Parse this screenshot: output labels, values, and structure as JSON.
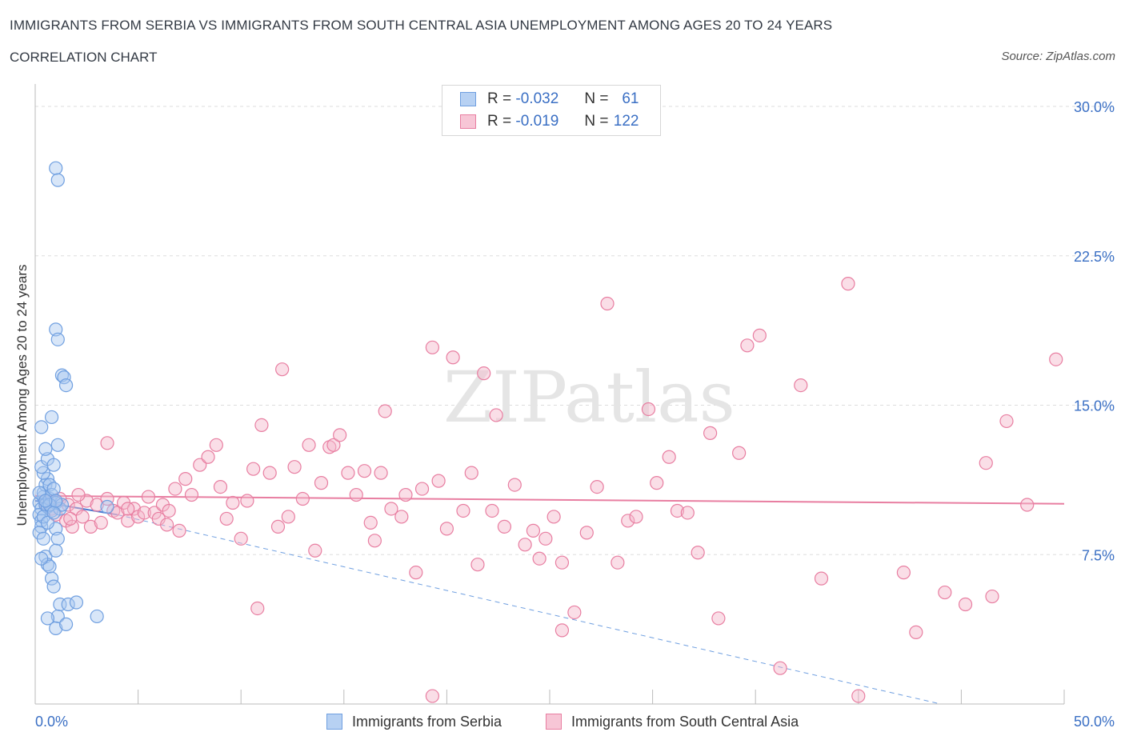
{
  "chart_data": {
    "type": "scatter",
    "title": "IMMIGRANTS FROM SERBIA VS IMMIGRANTS FROM SOUTH CENTRAL ASIA UNEMPLOYMENT AMONG AGES 20 TO 24 YEARS",
    "subtitle": "CORRELATION CHART",
    "source": "Source: ZipAtlas.com",
    "watermark": "ZIPatlas",
    "ylabel": "Unemployment Among Ages 20 to 24 years",
    "x_range": [
      0,
      50
    ],
    "y_range": [
      0,
      30
    ],
    "x_tick_labels": [
      "0.0%",
      "50.0%"
    ],
    "y_tick_labels": [
      "7.5%",
      "15.0%",
      "22.5%",
      "30.0%"
    ],
    "y_ticks": [
      7.5,
      15.0,
      22.5,
      30.0
    ],
    "legend": [
      {
        "r_label": "R =",
        "r_value": "-0.032",
        "n_label": "N =",
        "n_value": "61"
      },
      {
        "r_label": "R =",
        "r_value": "-0.019",
        "n_label": "N =",
        "n_value": "122"
      }
    ],
    "series": [
      {
        "name": "Immigrants from Serbia",
        "color": "#6f9fe0",
        "fill": "#a9c8f0",
        "trend": {
          "x": [
            0,
            4
          ],
          "y": [
            10.2,
            9.5
          ],
          "style": "solid"
        },
        "trend_ext": {
          "x": [
            4,
            44
          ],
          "y": [
            9.5,
            0
          ],
          "style": "dashed"
        },
        "points": [
          [
            0.2,
            10.1
          ],
          [
            0.3,
            9.8
          ],
          [
            0.2,
            9.5
          ],
          [
            0.4,
            10.4
          ],
          [
            0.3,
            9.2
          ],
          [
            0.5,
            10.0
          ],
          [
            0.4,
            10.6
          ],
          [
            0.6,
            9.9
          ],
          [
            0.7,
            10.3
          ],
          [
            0.8,
            9.7
          ],
          [
            0.3,
            8.9
          ],
          [
            0.2,
            8.6
          ],
          [
            0.4,
            8.3
          ],
          [
            0.5,
            11.0
          ],
          [
            0.6,
            11.3
          ],
          [
            0.4,
            11.6
          ],
          [
            0.7,
            11.0
          ],
          [
            0.8,
            10.5
          ],
          [
            0.9,
            10.8
          ],
          [
            0.3,
            11.9
          ],
          [
            0.6,
            12.3
          ],
          [
            0.5,
            12.8
          ],
          [
            0.9,
            12.0
          ],
          [
            1.1,
            13.0
          ],
          [
            0.3,
            13.9
          ],
          [
            0.8,
            14.4
          ],
          [
            1.0,
            10.1
          ],
          [
            1.2,
            9.8
          ],
          [
            1.3,
            10.0
          ],
          [
            1.0,
            8.8
          ],
          [
            1.1,
            8.3
          ],
          [
            0.5,
            7.4
          ],
          [
            0.6,
            7.0
          ],
          [
            0.7,
            6.9
          ],
          [
            0.8,
            6.3
          ],
          [
            0.9,
            5.9
          ],
          [
            1.0,
            7.7
          ],
          [
            1.2,
            5.0
          ],
          [
            1.1,
            4.4
          ],
          [
            0.6,
            4.3
          ],
          [
            1.0,
            3.8
          ],
          [
            1.5,
            4.0
          ],
          [
            1.6,
            5.0
          ],
          [
            2.0,
            5.1
          ],
          [
            3.0,
            4.4
          ],
          [
            0.3,
            7.3
          ],
          [
            1.0,
            18.8
          ],
          [
            1.1,
            18.3
          ],
          [
            1.3,
            16.5
          ],
          [
            1.4,
            16.4
          ],
          [
            1.5,
            16.0
          ],
          [
            1.0,
            26.9
          ],
          [
            1.1,
            26.3
          ],
          [
            0.2,
            10.6
          ],
          [
            0.4,
            9.4
          ],
          [
            0.6,
            9.1
          ],
          [
            0.7,
            10.0
          ],
          [
            0.9,
            9.6
          ],
          [
            1.0,
            10.2
          ],
          [
            3.5,
            9.9
          ],
          [
            0.5,
            10.2
          ]
        ]
      },
      {
        "name": "Immigrants from South Central Asia",
        "color": "#e87ea1",
        "fill": "#f3b6ca",
        "trend": {
          "x": [
            0,
            50
          ],
          "y": [
            10.45,
            10.05
          ],
          "style": "solid"
        },
        "points": [
          [
            0.5,
            10.1
          ],
          [
            0.8,
            9.8
          ],
          [
            1.0,
            9.5
          ],
          [
            1.2,
            10.3
          ],
          [
            1.5,
            9.2
          ],
          [
            1.6,
            10.0
          ],
          [
            1.8,
            8.9
          ],
          [
            2.0,
            9.8
          ],
          [
            2.3,
            9.4
          ],
          [
            2.5,
            10.2
          ],
          [
            2.7,
            8.9
          ],
          [
            3.0,
            10.0
          ],
          [
            3.2,
            9.1
          ],
          [
            3.5,
            10.3
          ],
          [
            3.8,
            9.7
          ],
          [
            4.0,
            9.6
          ],
          [
            4.3,
            10.1
          ],
          [
            4.5,
            9.2
          ],
          [
            4.8,
            9.8
          ],
          [
            5.0,
            9.4
          ],
          [
            5.3,
            9.6
          ],
          [
            5.5,
            10.4
          ],
          [
            5.8,
            9.6
          ],
          [
            6.0,
            9.3
          ],
          [
            6.2,
            10.0
          ],
          [
            6.5,
            9.7
          ],
          [
            6.8,
            10.8
          ],
          [
            7.0,
            8.7
          ],
          [
            7.3,
            11.3
          ],
          [
            7.6,
            10.5
          ],
          [
            8.0,
            12.0
          ],
          [
            8.4,
            12.4
          ],
          [
            8.8,
            13.0
          ],
          [
            9.0,
            10.9
          ],
          [
            9.3,
            9.3
          ],
          [
            9.6,
            10.1
          ],
          [
            10.0,
            8.3
          ],
          [
            10.3,
            10.2
          ],
          [
            10.6,
            11.8
          ],
          [
            11.0,
            14.0
          ],
          [
            11.4,
            11.6
          ],
          [
            11.8,
            8.9
          ],
          [
            12.0,
            16.8
          ],
          [
            12.3,
            9.4
          ],
          [
            12.6,
            11.9
          ],
          [
            13.0,
            10.3
          ],
          [
            13.3,
            13.0
          ],
          [
            13.6,
            7.7
          ],
          [
            13.9,
            11.1
          ],
          [
            14.3,
            12.9
          ],
          [
            14.5,
            13.0
          ],
          [
            14.8,
            13.5
          ],
          [
            15.2,
            11.6
          ],
          [
            15.6,
            10.5
          ],
          [
            16.0,
            11.7
          ],
          [
            16.3,
            9.1
          ],
          [
            16.5,
            8.2
          ],
          [
            16.8,
            11.6
          ],
          [
            17.0,
            14.7
          ],
          [
            17.3,
            9.8
          ],
          [
            17.8,
            9.4
          ],
          [
            18.0,
            10.5
          ],
          [
            18.5,
            6.6
          ],
          [
            18.8,
            10.8
          ],
          [
            19.3,
            17.9
          ],
          [
            19.6,
            11.2
          ],
          [
            20.0,
            8.8
          ],
          [
            20.3,
            17.4
          ],
          [
            20.8,
            9.7
          ],
          [
            21.2,
            11.6
          ],
          [
            21.5,
            7.0
          ],
          [
            21.8,
            16.6
          ],
          [
            22.2,
            9.7
          ],
          [
            22.4,
            14.5
          ],
          [
            22.8,
            8.9
          ],
          [
            23.3,
            11.0
          ],
          [
            23.8,
            8.0
          ],
          [
            24.2,
            8.7
          ],
          [
            24.5,
            7.3
          ],
          [
            24.8,
            8.3
          ],
          [
            25.2,
            9.4
          ],
          [
            25.6,
            7.1
          ],
          [
            26.2,
            4.6
          ],
          [
            26.8,
            8.6
          ],
          [
            27.3,
            10.9
          ],
          [
            27.8,
            20.1
          ],
          [
            28.3,
            7.1
          ],
          [
            28.8,
            9.2
          ],
          [
            29.2,
            9.4
          ],
          [
            29.8,
            14.8
          ],
          [
            30.2,
            11.1
          ],
          [
            30.8,
            12.4
          ],
          [
            31.2,
            9.7
          ],
          [
            31.7,
            9.6
          ],
          [
            32.2,
            7.6
          ],
          [
            32.8,
            13.6
          ],
          [
            33.2,
            4.3
          ],
          [
            34.2,
            12.6
          ],
          [
            34.6,
            18.0
          ],
          [
            35.2,
            18.5
          ],
          [
            36.2,
            1.8
          ],
          [
            37.2,
            16.0
          ],
          [
            38.2,
            6.3
          ],
          [
            39.5,
            21.1
          ],
          [
            40.0,
            0.4
          ],
          [
            42.2,
            6.6
          ],
          [
            42.8,
            3.6
          ],
          [
            44.2,
            5.6
          ],
          [
            45.2,
            5.0
          ],
          [
            46.2,
            12.1
          ],
          [
            46.5,
            5.4
          ],
          [
            47.2,
            14.2
          ],
          [
            48.2,
            10.0
          ],
          [
            49.6,
            17.3
          ],
          [
            3.5,
            13.1
          ],
          [
            4.5,
            9.8
          ],
          [
            2.1,
            10.5
          ],
          [
            1.7,
            9.3
          ],
          [
            6.4,
            9.0
          ],
          [
            19.3,
            0.4
          ],
          [
            10.8,
            4.8
          ],
          [
            25.6,
            3.7
          ]
        ]
      }
    ]
  }
}
